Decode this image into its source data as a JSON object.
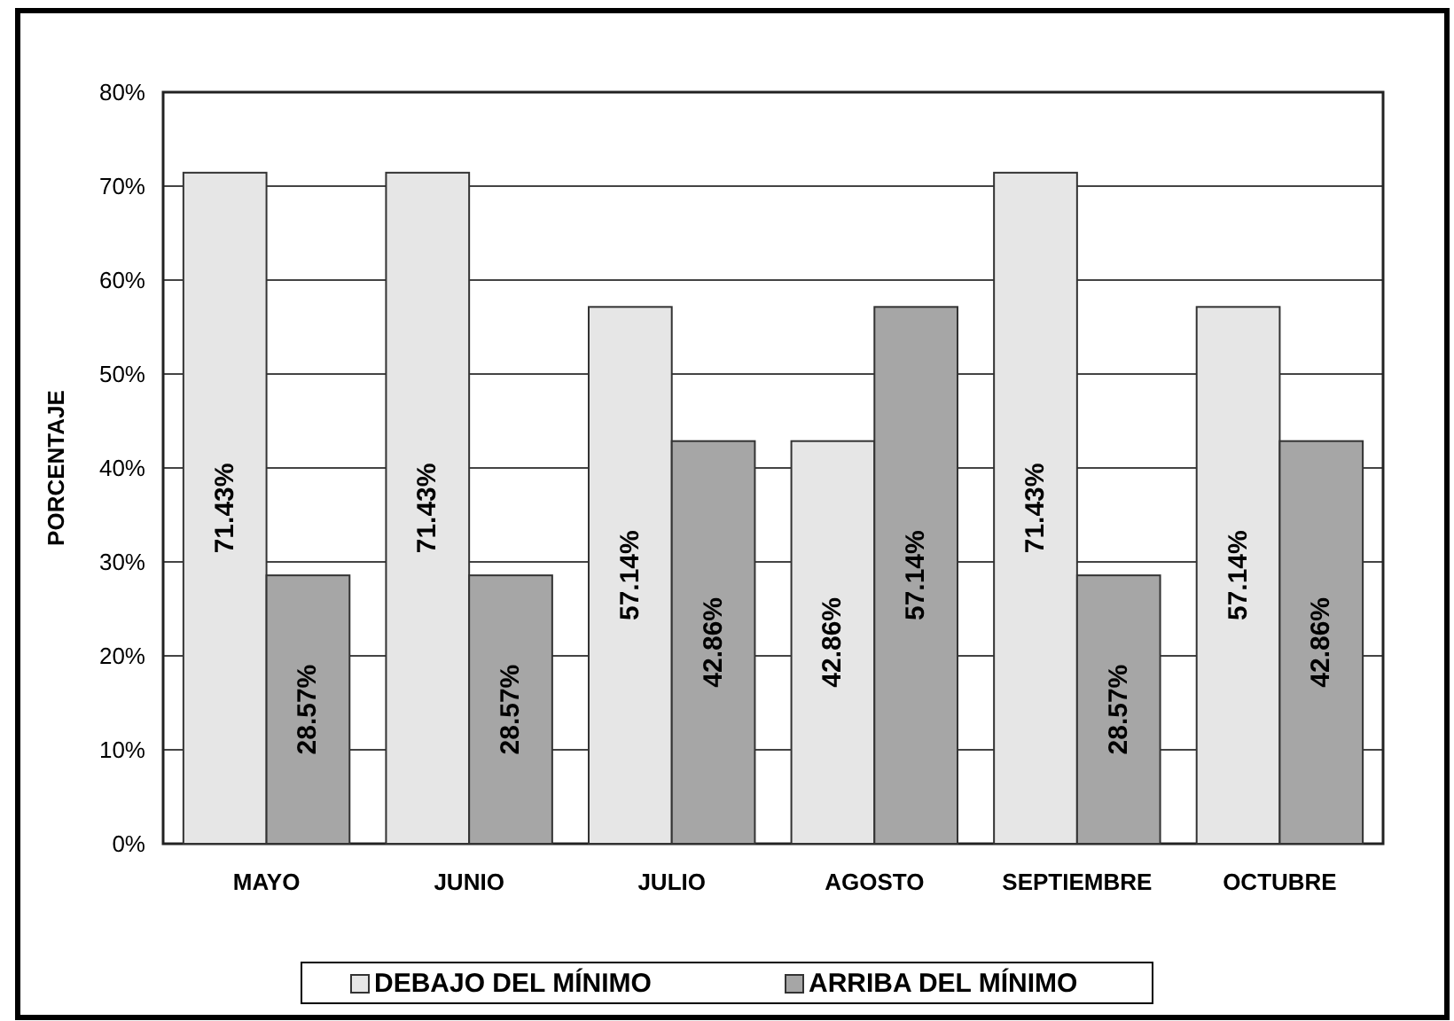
{
  "chart_data": {
    "type": "bar",
    "ylabel": "PORCENTAJE",
    "categories": [
      "MAYO",
      "JUNIO",
      "JULIO",
      "AGOSTO",
      "SEPTIEMBRE",
      "OCTUBRE"
    ],
    "series": [
      {
        "name": "DEBAJO DEL MÍNIMO",
        "color": "#e6e6e6",
        "values": [
          71.43,
          71.43,
          57.14,
          42.86,
          71.43,
          57.14
        ],
        "value_labels": [
          "71.43%",
          "71.43%",
          "57.14%",
          "42.86%",
          "71.43%",
          "57.14%"
        ]
      },
      {
        "name": "ARRIBA DEL MÍNIMO",
        "color": "#a6a6a6",
        "values": [
          28.57,
          28.57,
          42.86,
          57.14,
          28.57,
          42.86
        ],
        "value_labels": [
          "28.57%",
          "28.57%",
          "42.86%",
          "57.14%",
          "28.57%",
          "42.86%"
        ]
      }
    ],
    "ylim": [
      0,
      80
    ],
    "yticks": [
      {
        "value": 0,
        "label": "0%"
      },
      {
        "value": 10,
        "label": "10%"
      },
      {
        "value": 20,
        "label": "20%"
      },
      {
        "value": 30,
        "label": "30%"
      },
      {
        "value": 40,
        "label": "40%"
      },
      {
        "value": 50,
        "label": "50%"
      },
      {
        "value": 60,
        "label": "60%"
      },
      {
        "value": 70,
        "label": "70%"
      },
      {
        "value": 80,
        "label": "80%"
      }
    ],
    "grid": "y",
    "legend": "bottom"
  }
}
